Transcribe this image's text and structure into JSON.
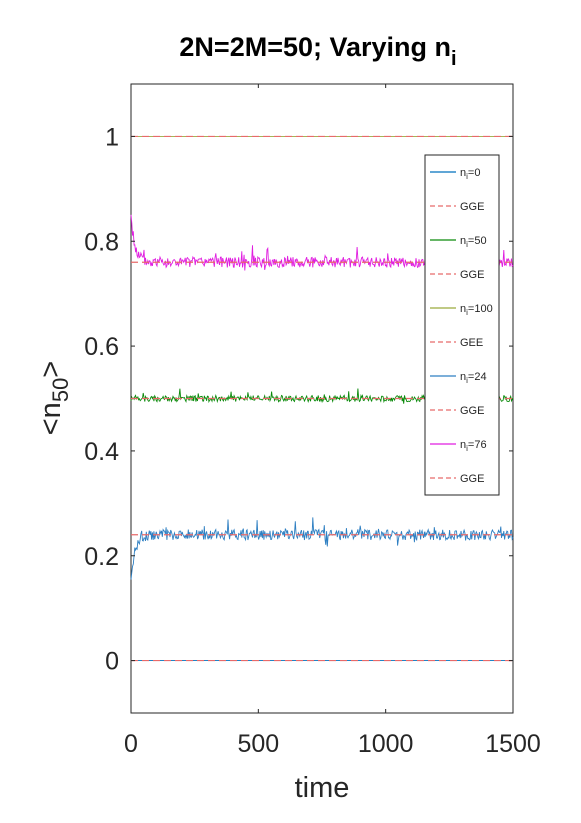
{
  "chart_data": {
    "type": "line",
    "title": "2N=2M=50; Varying n",
    "title_sub": "i",
    "xlabel": "time",
    "ylabel": {
      "base": "<n",
      "sub": "50",
      "close": ">"
    },
    "xlim": [
      0,
      1500
    ],
    "ylim": [
      -0.1,
      1.1
    ],
    "xticks": [
      0,
      500,
      1000,
      1500
    ],
    "xtick_labels": [
      "0",
      "500",
      "1000",
      "1500"
    ],
    "yticks": [
      0,
      0.2,
      0.4,
      0.6,
      0.8,
      1
    ],
    "ytick_labels": [
      "0",
      "0.2",
      "0.4",
      "0.6",
      "0.8",
      "1"
    ],
    "grid": false,
    "legend_position": "right, inside axes",
    "series": [
      {
        "name": "n_i=0",
        "label_base": "n",
        "label_sub": "i",
        "label_rest": "=0",
        "style": "solid",
        "color": "#0072BD",
        "mean": 0.0,
        "start": 0.0,
        "amp": 0.0,
        "seed": 1
      },
      {
        "name": "GGE",
        "label_base": "GGE",
        "label_sub": "",
        "label_rest": "",
        "style": "dashed",
        "color": "#E86A6A",
        "value": 0.0
      },
      {
        "name": "n_i=50",
        "label_base": "n",
        "label_sub": "i",
        "label_rest": "=50",
        "style": "solid",
        "color": "#0A8A0A",
        "mean": 0.5,
        "start": 0.5,
        "amp": 0.012,
        "seed": 2
      },
      {
        "name": "GGE",
        "label_base": "GGE",
        "label_sub": "",
        "label_rest": "",
        "style": "dashed",
        "color": "#E86A6A",
        "value": 0.5
      },
      {
        "name": "n_i=100",
        "label_base": "n",
        "label_sub": "i",
        "label_rest": "=100",
        "style": "solid",
        "color": "#9AAA3C",
        "mean": 1.0,
        "start": 1.0,
        "amp": 0.0,
        "seed": 3
      },
      {
        "name": "GEE",
        "label_base": "GEE",
        "label_sub": "",
        "label_rest": "",
        "style": "dashed",
        "color": "#E86A6A",
        "value": 1.0
      },
      {
        "name": "n_i=24",
        "label_base": "n",
        "label_sub": "i",
        "label_rest": "=24",
        "style": "solid",
        "color": "#2E7FC2",
        "mean": 0.24,
        "start": 0.15,
        "amp": 0.02,
        "seed": 4
      },
      {
        "name": "GGE",
        "label_base": "GGE",
        "label_sub": "",
        "label_rest": "",
        "style": "dashed",
        "color": "#E86A6A",
        "value": 0.24
      },
      {
        "name": "n_i=76",
        "label_base": "n",
        "label_sub": "i",
        "label_rest": "=76",
        "style": "solid",
        "color": "#E01EE0",
        "mean": 0.76,
        "start": 0.85,
        "amp": 0.02,
        "seed": 5
      },
      {
        "name": "GGE",
        "label_base": "GGE",
        "label_sub": "",
        "label_rest": "",
        "style": "dashed",
        "color": "#E86A6A",
        "value": 0.76
      }
    ]
  }
}
